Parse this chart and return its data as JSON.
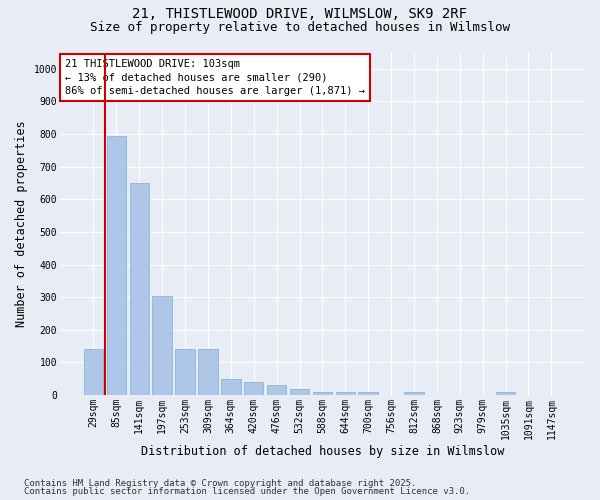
{
  "title_line1": "21, THISTLEWOOD DRIVE, WILMSLOW, SK9 2RF",
  "title_line2": "Size of property relative to detached houses in Wilmslow",
  "xlabel": "Distribution of detached houses by size in Wilmslow",
  "ylabel": "Number of detached properties",
  "categories": [
    "29sqm",
    "85sqm",
    "141sqm",
    "197sqm",
    "253sqm",
    "309sqm",
    "364sqm",
    "420sqm",
    "476sqm",
    "532sqm",
    "588sqm",
    "644sqm",
    "700sqm",
    "756sqm",
    "812sqm",
    "868sqm",
    "923sqm",
    "979sqm",
    "1035sqm",
    "1091sqm",
    "1147sqm"
  ],
  "bar_values": [
    140,
    795,
    650,
    305,
    140,
    140,
    50,
    40,
    30,
    20,
    10,
    10,
    10,
    0,
    10,
    0,
    0,
    0,
    10,
    0,
    0
  ],
  "bar_color": "#aec6e8",
  "bar_edgecolor": "#7bafd4",
  "vline_color": "#cc0000",
  "annotation_text": "21 THISTLEWOOD DRIVE: 103sqm\n← 13% of detached houses are smaller (290)\n86% of semi-detached houses are larger (1,871) →",
  "annotation_box_edgecolor": "#cc0000",
  "annotation_box_facecolor": "#ffffff",
  "ylim": [
    0,
    1050
  ],
  "yticks": [
    0,
    100,
    200,
    300,
    400,
    500,
    600,
    700,
    800,
    900,
    1000
  ],
  "footnote_line1": "Contains HM Land Registry data © Crown copyright and database right 2025.",
  "footnote_line2": "Contains public sector information licensed under the Open Government Licence v3.0.",
  "bg_color": "#e8edf5",
  "plot_bg_color": "#e8edf5",
  "title_fontsize": 10,
  "subtitle_fontsize": 9,
  "tick_fontsize": 7,
  "label_fontsize": 8.5,
  "footnote_fontsize": 6.5
}
